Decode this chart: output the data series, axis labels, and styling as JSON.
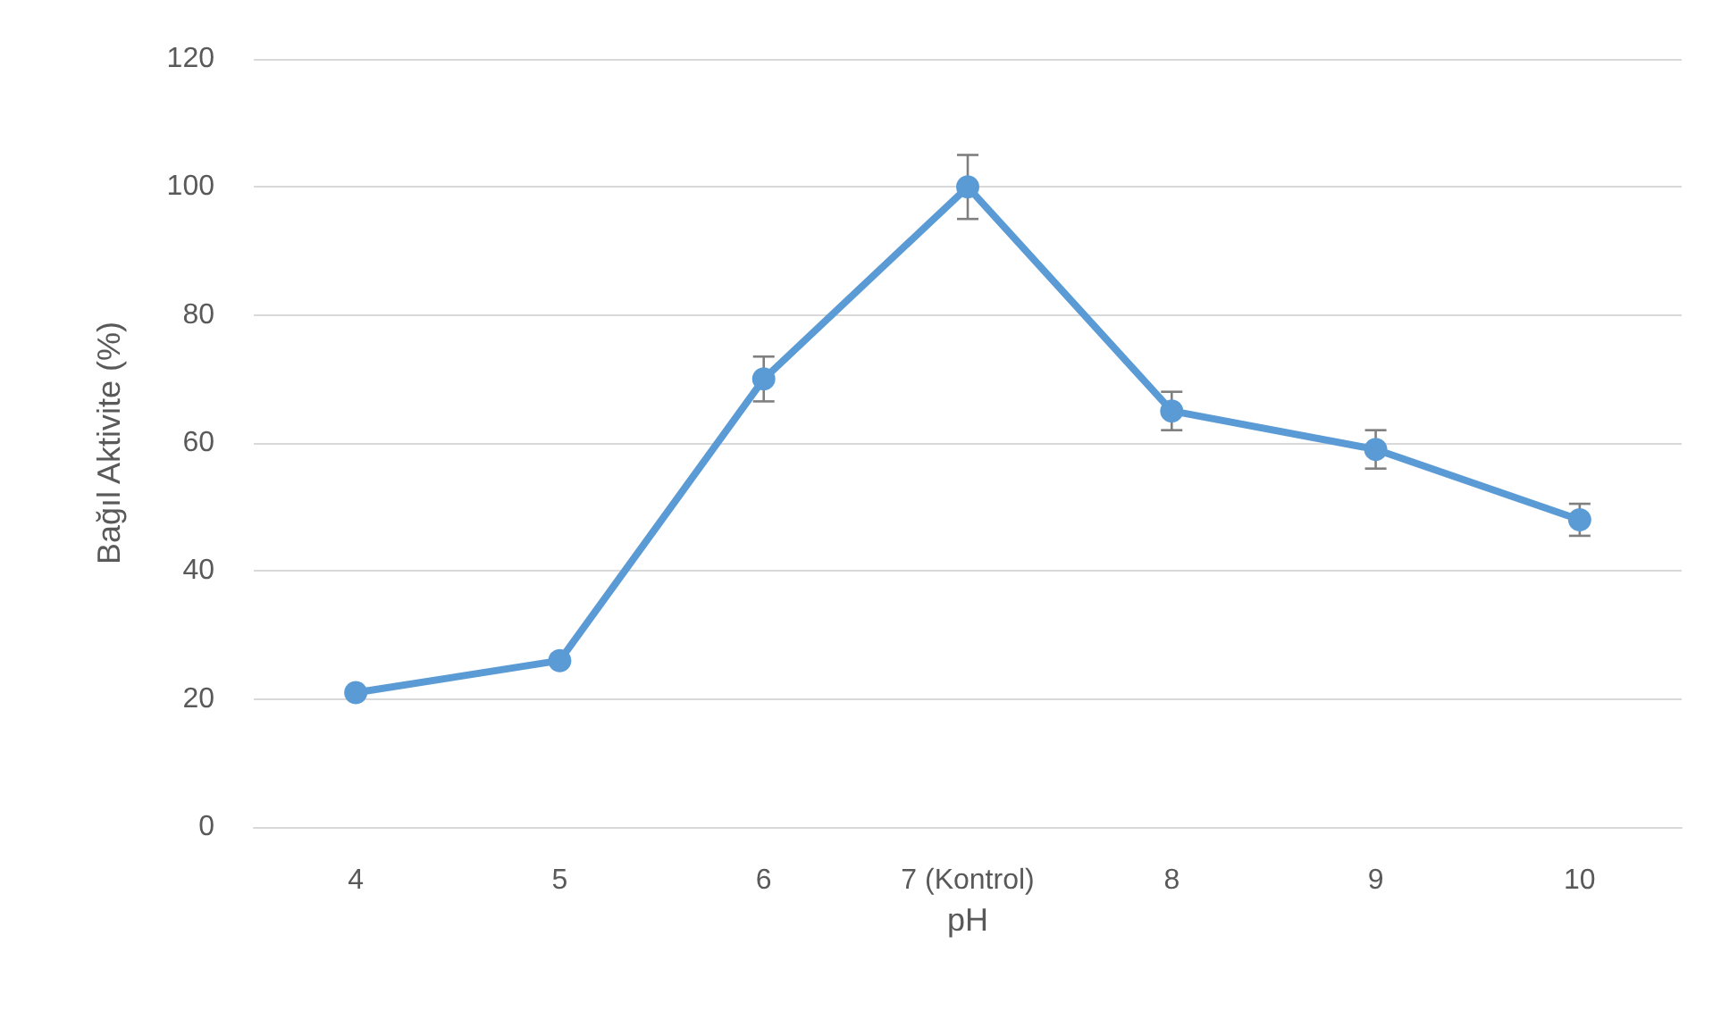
{
  "chart_data": {
    "type": "line",
    "xlabel": "pH",
    "ylabel": "Bağıl Aktivite (%)",
    "categories": [
      "4",
      "5",
      "6",
      "7 (Kontrol)",
      "8",
      "9",
      "10"
    ],
    "series": [
      {
        "color": "#5b9bd5",
        "values": [
          21,
          26,
          70,
          100,
          65,
          59,
          48
        ],
        "errors": [
          null,
          null,
          3.5,
          5,
          3,
          3,
          2.5
        ]
      }
    ],
    "ylim": [
      0,
      120
    ],
    "yticks": [
      0,
      20,
      40,
      60,
      80,
      100,
      120
    ],
    "grid": "y",
    "marker": "circle",
    "line_style": "solid"
  }
}
